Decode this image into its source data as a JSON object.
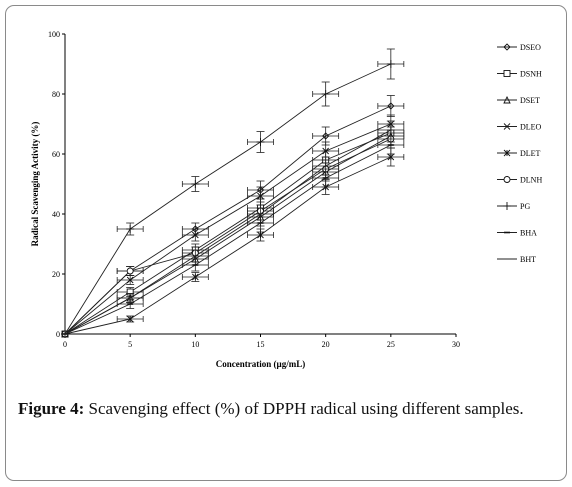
{
  "chart_data": {
    "type": "line",
    "xlabel": "Concentration  (µg/mL)",
    "ylabel": "Radical  Scavenging  Activity  (%)",
    "xlim": [
      0,
      30
    ],
    "ylim": [
      0,
      100
    ],
    "xticks": [
      "0",
      "5",
      "10",
      "15",
      "20",
      "25",
      "30"
    ],
    "yticks": [
      "0",
      "20",
      "40",
      "60",
      "80",
      "100"
    ],
    "grid": false,
    "legend_position": "right",
    "x": [
      0,
      5,
      10,
      15,
      20,
      25
    ],
    "series": [
      {
        "name": "DSEO",
        "marker": "diamond",
        "values": [
          0,
          21,
          35,
          48,
          66,
          76
        ],
        "error": [
          0,
          1.5,
          2,
          3,
          3,
          3.5
        ]
      },
      {
        "name": "DSNH",
        "marker": "square",
        "values": [
          0,
          14,
          28,
          42,
          58,
          67
        ],
        "error": [
          0,
          1.5,
          2,
          3,
          3,
          3
        ]
      },
      {
        "name": "DSET",
        "marker": "triangle",
        "values": [
          0,
          12,
          25,
          39,
          54,
          66
        ],
        "error": [
          0,
          1.5,
          2,
          3,
          3,
          3
        ]
      },
      {
        "name": "DLEO",
        "marker": "x",
        "values": [
          0,
          18,
          33,
          46,
          61,
          70
        ],
        "error": [
          0,
          1.5,
          2,
          3,
          3,
          3
        ]
      },
      {
        "name": "DLET",
        "marker": "star",
        "values": [
          0,
          5,
          19,
          33,
          49,
          59
        ],
        "error": [
          0,
          1,
          1.5,
          2,
          2.5,
          3
        ]
      },
      {
        "name": "DLNH",
        "marker": "circle",
        "values": [
          0,
          21,
          27,
          41,
          55,
          65
        ],
        "error": [
          0,
          1.5,
          2,
          3,
          3,
          3
        ]
      },
      {
        "name": "PG",
        "marker": "plus",
        "values": [
          0,
          35,
          50,
          64,
          80,
          90
        ],
        "error": [
          0,
          2,
          2.5,
          3.5,
          4,
          5
        ]
      },
      {
        "name": "BHA",
        "marker": "dash",
        "values": [
          0,
          10,
          23,
          37,
          52,
          63
        ],
        "error": [
          0,
          1.5,
          2,
          3,
          3,
          3
        ]
      },
      {
        "name": "BHT",
        "marker": "line",
        "values": [
          0,
          12,
          26,
          40,
          56,
          68
        ],
        "error": [
          0,
          1.5,
          2,
          3,
          3,
          3
        ]
      }
    ]
  },
  "caption": {
    "label": "Figure 4:",
    "text": " Scavenging effect (%) of DPPH radical using different samples."
  }
}
